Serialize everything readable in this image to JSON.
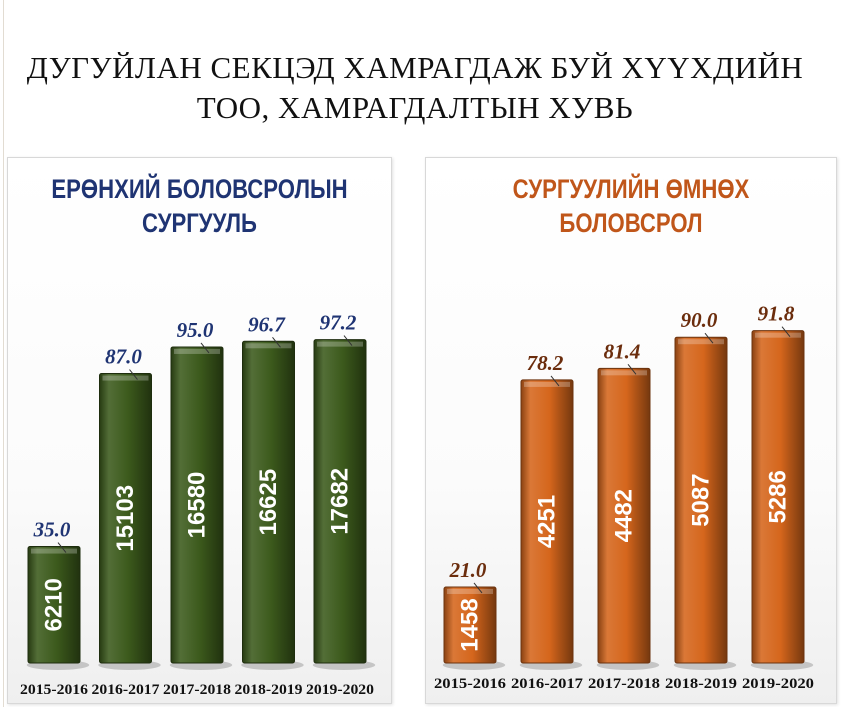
{
  "title_lines": [
    "ДУГУЙЛАН СЕКЦЭД ХАМРАГДАЖ БУЙ ХҮҮХДИЙН",
    "ТОО, ХАМРАГДАЛТЫН ХУВЬ"
  ],
  "colors": {
    "left_title": "#1f3473",
    "left_bar": "#3c5a1c",
    "left_pct": "#1f3473",
    "right_title": "#c0561a",
    "right_bar": "#d5661c",
    "right_pct": "#6b2d0d"
  },
  "chart_data": [
    {
      "type": "bar",
      "title_lines": [
        "ЕРӨНХИЙ БОЛОВСРОЛЫН",
        "СУРГУУЛЬ"
      ],
      "categories": [
        "2015-2016",
        "2016-2017",
        "2017-2018",
        "2018-2019",
        "2019-2020"
      ],
      "values": [
        35.0,
        87.0,
        95.0,
        96.7,
        97.2
      ],
      "pct_labels": [
        "35.0",
        "87.0",
        "95.0",
        "96.7",
        "97.2"
      ],
      "counts": [
        "6210",
        "15103",
        "16580",
        "16625",
        "17682"
      ],
      "ylim": [
        0,
        100
      ]
    },
    {
      "type": "bar",
      "title_lines": [
        "СУРГУУЛИЙН ӨМНӨХ",
        "БОЛОВСРОЛ"
      ],
      "categories": [
        "2015-2016",
        "2016-2017",
        "2017-2018",
        "2018-2019",
        "2019-2020"
      ],
      "values": [
        21.0,
        78.2,
        81.4,
        90.0,
        91.8
      ],
      "pct_labels": [
        "21.0",
        "78.2",
        "81.4",
        "90.0",
        "91.8"
      ],
      "counts": [
        "1458",
        "4251",
        "4482",
        "5087",
        "5286"
      ],
      "ylim": [
        0,
        100
      ]
    }
  ]
}
